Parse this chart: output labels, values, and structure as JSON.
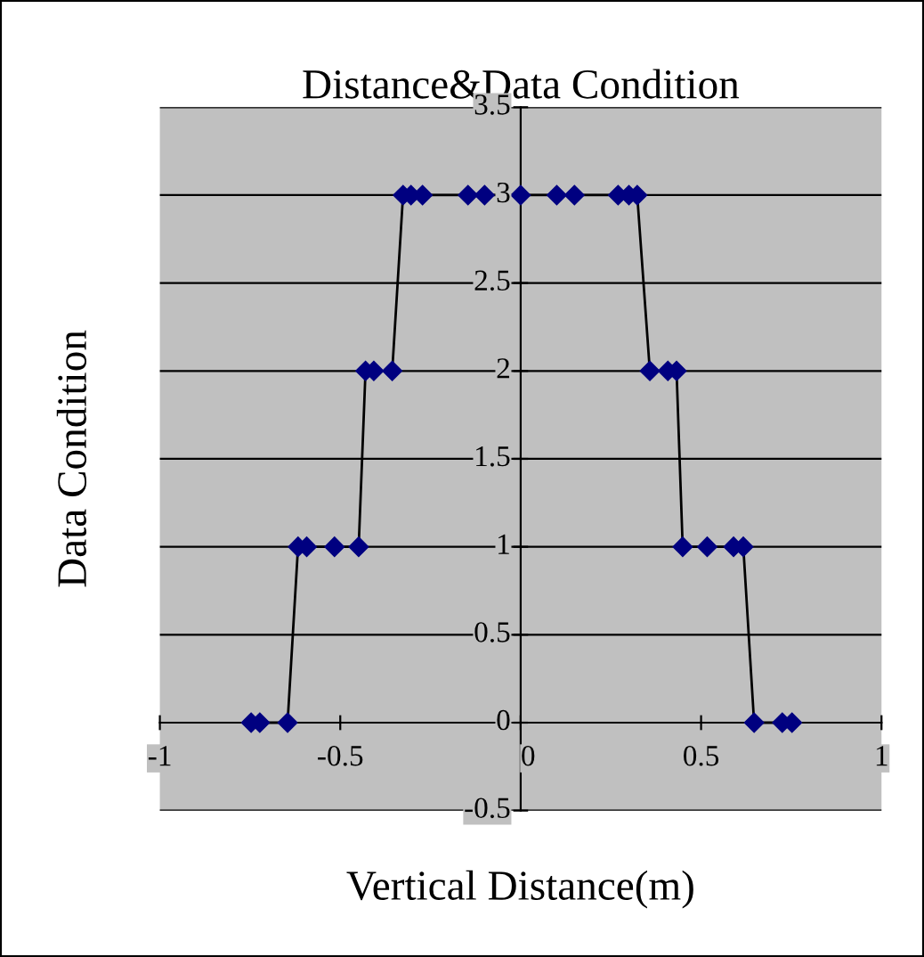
{
  "chart_data": {
    "type": "line",
    "title": "Distance&Data Condition",
    "xlabel": "Vertical Distance(m)",
    "ylabel": "Data Condition",
    "x": [
      -0.747,
      -0.723,
      -0.646,
      -0.617,
      -0.593,
      -0.516,
      -0.449,
      -0.43,
      -0.407,
      -0.356,
      -0.326,
      -0.304,
      -0.272,
      -0.146,
      -0.1,
      0,
      0.1,
      0.149,
      0.27,
      0.3,
      0.323,
      0.358,
      0.408,
      0.432,
      0.449,
      0.517,
      0.59,
      0.617,
      0.647,
      0.725,
      0.752
    ],
    "series": [
      {
        "color": "#000080",
        "values": [
          0,
          0,
          0,
          1,
          1,
          1,
          1,
          2,
          2,
          2,
          3,
          3,
          3,
          3,
          3,
          3,
          3,
          3,
          3,
          3,
          3,
          2,
          2,
          2,
          1,
          1,
          1,
          1,
          0,
          0,
          0
        ]
      }
    ],
    "xlim": [
      -1,
      1
    ],
    "xticks": [
      -1,
      -0.5,
      0,
      0.5,
      1
    ],
    "ylim": [
      -0.5,
      3.5
    ],
    "yticks": [
      -0.5,
      0,
      0.5,
      1,
      1.5,
      2,
      2.5,
      3,
      3.5
    ],
    "grid": "y",
    "marker": "diamond",
    "line_style": "solid",
    "legend": false
  }
}
